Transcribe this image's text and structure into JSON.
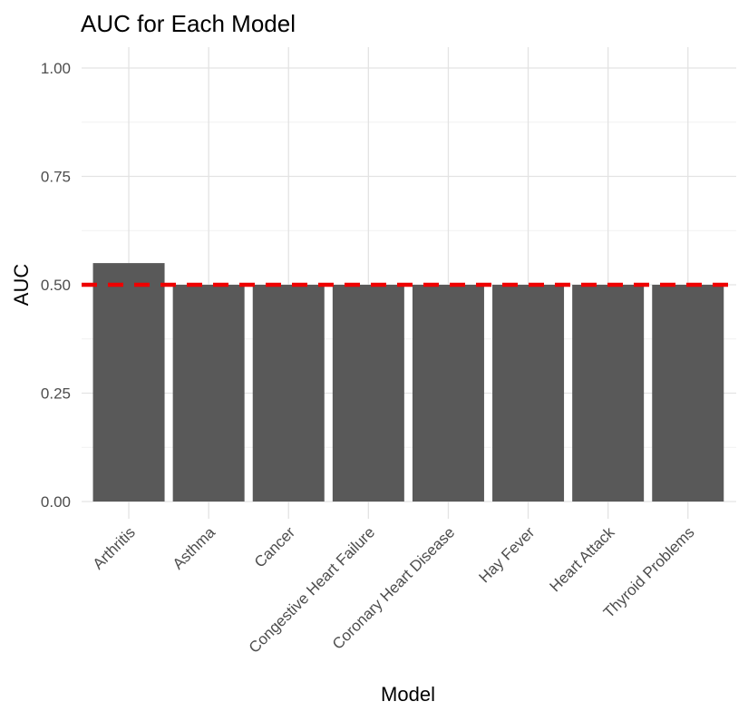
{
  "chart_data": {
    "type": "bar",
    "title": "AUC for Each Model",
    "xlabel": "Model",
    "ylabel": "AUC",
    "categories": [
      "Arthritis",
      "Asthma",
      "Cancer",
      "Congestive Heart Failure",
      "Coronary Heart Disease",
      "Hay Fever",
      "Heart Attack",
      "Thyroid Problems"
    ],
    "values": [
      0.55,
      0.5,
      0.5,
      0.5,
      0.5,
      0.5,
      0.5,
      0.5
    ],
    "ylim": [
      0,
      1
    ],
    "yticks": [
      "0.00",
      "0.25",
      "0.50",
      "0.75",
      "1.00"
    ],
    "reference_line": {
      "value": 0.5,
      "color": "#ee0000",
      "style": "dashed"
    },
    "grid": true,
    "legend": "none",
    "bar_color": "#595959"
  }
}
